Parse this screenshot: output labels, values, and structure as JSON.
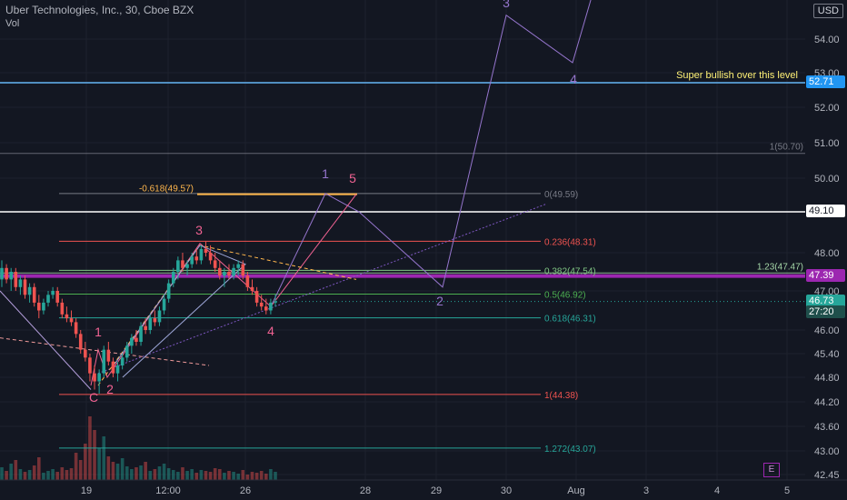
{
  "header": {
    "title": "Uber Technologies, Inc., 30, Cboe BZX",
    "indicator": "Vol"
  },
  "currency": "USD",
  "marker": "E",
  "chart_data": {
    "type": "candlestick",
    "price_scale": {
      "ylim": [
        42.3,
        55.6
      ],
      "ticks": [
        "42.45",
        "43.00",
        "43.60",
        "44.20",
        "44.80",
        "45.40",
        "46.00",
        "47.00",
        "48.00",
        "49.10",
        "50.00",
        "51.00",
        "52.00",
        "53.00",
        "54.00"
      ],
      "tick_values": [
        42.45,
        43.0,
        43.6,
        44.2,
        44.8,
        45.4,
        46.0,
        47.0,
        48.0,
        49.1,
        50.0,
        51.0,
        52.0,
        53.0,
        54.0
      ]
    },
    "time_axis": {
      "ticks": [
        "19",
        "12:00",
        "26",
        "28",
        "29",
        "30",
        "Aug",
        "3",
        "4",
        "5"
      ]
    },
    "price_badges": [
      {
        "label": "52.71",
        "value": 52.71,
        "color": "#2196f3"
      },
      {
        "label": "49.10",
        "value": 49.1,
        "color": "#ffffff",
        "text_color": "#131722"
      },
      {
        "label": "47.39",
        "value": 47.39,
        "color": "#9c27b0"
      },
      {
        "label": "46.73",
        "value": 46.73,
        "color": "#26a69a"
      },
      {
        "label": "27:20",
        "value": 46.45,
        "color": "#1f4f4b"
      }
    ],
    "horizontal_lines": [
      {
        "value": 52.71,
        "color": "#64b5f6",
        "note": "Super bullish over this level"
      },
      {
        "value": 49.1,
        "color": "#ffffff"
      },
      {
        "value": 47.39,
        "color": "#9c27b0"
      },
      {
        "value": 50.7,
        "color": "#787b86",
        "label": "1(50.70)"
      },
      {
        "value": 47.47,
        "color": "#a5d6a7",
        "label": "1.23(47.47)"
      }
    ],
    "fib_levels": [
      {
        "label": "0(49.59)",
        "value": 49.59,
        "color": "#787b86"
      },
      {
        "label": "-0.618(49.57)",
        "value": 49.57,
        "color": "#ffb74d"
      },
      {
        "label": "0.236(48.31)",
        "value": 48.31,
        "color": "#ef5350"
      },
      {
        "label": "0.382(47.54)",
        "value": 47.54,
        "color": "#81c784"
      },
      {
        "label": "0.5(46.92)",
        "value": 46.92,
        "color": "#4caf50"
      },
      {
        "label": "0.618(46.31)",
        "value": 46.31,
        "color": "#26a69a"
      },
      {
        "label": "1(44.38)",
        "value": 44.38,
        "color": "#ef5350"
      },
      {
        "label": "1.272(43.07)",
        "value": 43.07,
        "color": "#26a69a"
      }
    ],
    "waves": {
      "pink": [
        "1",
        "2",
        "3",
        "4",
        "5"
      ],
      "purple": [
        "1",
        "2",
        "3",
        "4"
      ],
      "corrective": "C"
    },
    "candles": [
      [
        47.3,
        47.8,
        47.1,
        47.6
      ],
      [
        47.6,
        47.7,
        47.2,
        47.3
      ],
      [
        47.3,
        47.6,
        47.0,
        47.5
      ],
      [
        47.5,
        47.6,
        47.0,
        47.1
      ],
      [
        47.1,
        47.4,
        46.9,
        47.3
      ],
      [
        47.3,
        47.4,
        46.8,
        46.9
      ],
      [
        46.9,
        47.2,
        46.7,
        47.1
      ],
      [
        47.1,
        47.2,
        46.6,
        46.7
      ],
      [
        46.7,
        46.9,
        46.3,
        46.5
      ],
      [
        46.5,
        46.8,
        46.4,
        46.7
      ],
      [
        46.7,
        47.0,
        46.6,
        46.9
      ],
      [
        46.9,
        47.1,
        46.8,
        47.0
      ],
      [
        47.0,
        47.1,
        46.6,
        46.7
      ],
      [
        46.7,
        46.8,
        46.3,
        46.4
      ],
      [
        46.4,
        46.6,
        46.2,
        46.3
      ],
      [
        46.3,
        46.5,
        46.1,
        46.2
      ],
      [
        46.2,
        46.3,
        45.8,
        45.9
      ],
      [
        45.9,
        46.0,
        45.4,
        45.5
      ],
      [
        45.5,
        45.7,
        45.2,
        45.3
      ],
      [
        45.3,
        45.4,
        44.7,
        44.9
      ],
      [
        44.9,
        45.1,
        44.5,
        44.7
      ],
      [
        44.7,
        45.0,
        44.4,
        44.9
      ],
      [
        44.9,
        45.6,
        44.8,
        45.5
      ],
      [
        45.5,
        45.7,
        45.1,
        45.2
      ],
      [
        45.2,
        45.3,
        44.8,
        44.9
      ],
      [
        44.9,
        45.2,
        44.7,
        45.1
      ],
      [
        45.1,
        45.4,
        45.0,
        45.3
      ],
      [
        45.3,
        45.7,
        45.2,
        45.6
      ],
      [
        45.6,
        45.9,
        45.4,
        45.8
      ],
      [
        45.8,
        46.0,
        45.6,
        45.7
      ],
      [
        45.7,
        46.2,
        45.6,
        46.1
      ],
      [
        46.1,
        46.3,
        45.9,
        46.0
      ],
      [
        46.0,
        46.4,
        45.9,
        46.3
      ],
      [
        46.3,
        46.5,
        46.1,
        46.2
      ],
      [
        46.2,
        46.6,
        46.1,
        46.5
      ],
      [
        46.5,
        46.9,
        46.4,
        46.8
      ],
      [
        46.8,
        47.3,
        46.7,
        47.2
      ],
      [
        47.2,
        47.6,
        47.1,
        47.5
      ],
      [
        47.5,
        47.9,
        47.3,
        47.8
      ],
      [
        47.8,
        48.0,
        47.5,
        47.6
      ],
      [
        47.6,
        47.8,
        47.4,
        47.7
      ],
      [
        47.7,
        48.0,
        47.6,
        47.9
      ],
      [
        47.9,
        48.1,
        47.7,
        47.8
      ],
      [
        47.8,
        48.2,
        47.7,
        48.1
      ],
      [
        48.1,
        48.3,
        47.9,
        48.0
      ],
      [
        48.0,
        48.2,
        47.7,
        47.8
      ],
      [
        47.8,
        48.0,
        47.5,
        47.6
      ],
      [
        47.6,
        47.8,
        47.3,
        47.4
      ],
      [
        47.4,
        47.6,
        47.1,
        47.5
      ],
      [
        47.5,
        47.7,
        47.3,
        47.4
      ],
      [
        47.4,
        47.7,
        47.3,
        47.6
      ],
      [
        47.6,
        47.8,
        47.4,
        47.7
      ],
      [
        47.7,
        47.8,
        47.3,
        47.4
      ],
      [
        47.4,
        47.5,
        47.0,
        47.1
      ],
      [
        47.1,
        47.3,
        46.9,
        47.0
      ],
      [
        47.0,
        47.1,
        46.6,
        46.7
      ],
      [
        46.7,
        46.9,
        46.5,
        46.6
      ],
      [
        46.6,
        46.8,
        46.4,
        46.5
      ],
      [
        46.5,
        46.8,
        46.4,
        46.7
      ],
      [
        46.7,
        46.9,
        46.6,
        46.73
      ]
    ],
    "volume": [
      14,
      10,
      18,
      22,
      12,
      9,
      11,
      16,
      25,
      8,
      10,
      12,
      9,
      14,
      11,
      13,
      30,
      22,
      40,
      70,
      55,
      35,
      48,
      26,
      20,
      18,
      24,
      15,
      12,
      14,
      16,
      20,
      10,
      12,
      15,
      18,
      13,
      11,
      9,
      14,
      10,
      12,
      8,
      11,
      10,
      9,
      13,
      12,
      8,
      10,
      9,
      7,
      11,
      6,
      9,
      8,
      10,
      7,
      12,
      9
    ]
  }
}
